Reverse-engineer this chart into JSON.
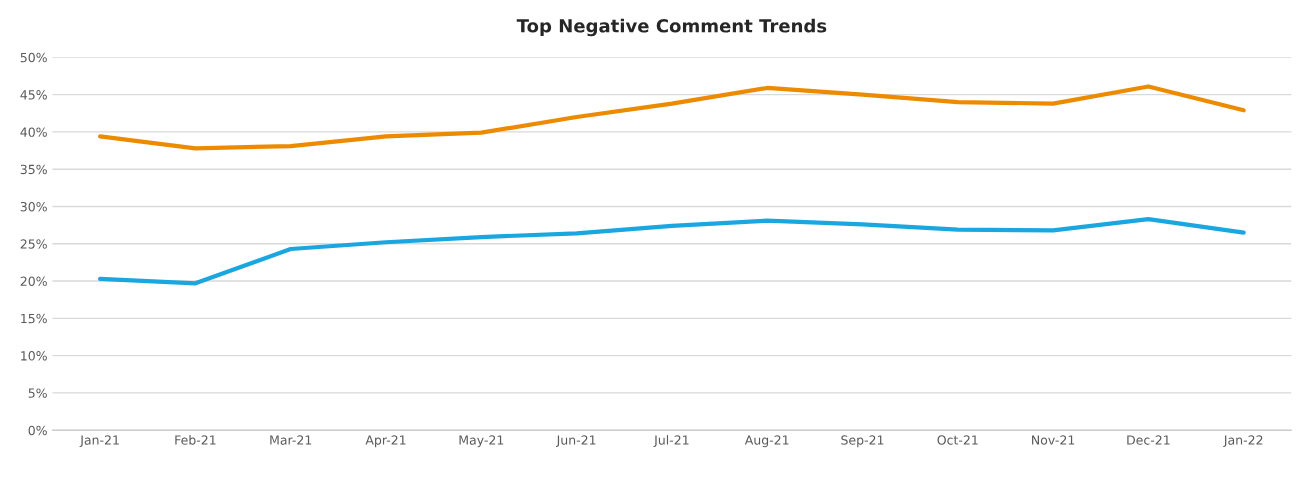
{
  "chart_data": {
    "type": "line",
    "title": "Top Negative Comment Trends",
    "categories": [
      "Jan-21",
      "Feb-21",
      "Mar-21",
      "Apr-21",
      "May-21",
      "Jun-21",
      "Jul-21",
      "Aug-21",
      "Sep-21",
      "Oct-21",
      "Nov-21",
      "Dec-21",
      "Jan-22"
    ],
    "series": [
      {
        "color": "#ed8b00",
        "values": [
          39.4,
          37.8,
          38.1,
          39.4,
          39.9,
          42.0,
          43.8,
          45.9,
          45.0,
          44.0,
          43.8,
          46.1,
          42.9
        ]
      },
      {
        "color": "#1aa7e0",
        "values": [
          20.3,
          19.7,
          24.3,
          25.2,
          25.9,
          26.4,
          27.4,
          28.1,
          27.6,
          26.9,
          26.8,
          28.3,
          26.5
        ]
      }
    ],
    "ylim": [
      0,
      50
    ],
    "yticks": [
      {
        "value": 0,
        "label": "0%"
      },
      {
        "value": 5,
        "label": "5%"
      },
      {
        "value": 10,
        "label": "10%"
      },
      {
        "value": 15,
        "label": "15%"
      },
      {
        "value": 20,
        "label": "20%"
      },
      {
        "value": 25,
        "label": "25%"
      },
      {
        "value": 30,
        "label": "30%"
      },
      {
        "value": 35,
        "label": "35%"
      },
      {
        "value": 40,
        "label": "40%"
      },
      {
        "value": 45,
        "label": "45%"
      },
      {
        "value": 50,
        "label": "50%"
      }
    ],
    "grid": "y",
    "line_style": "solid"
  }
}
